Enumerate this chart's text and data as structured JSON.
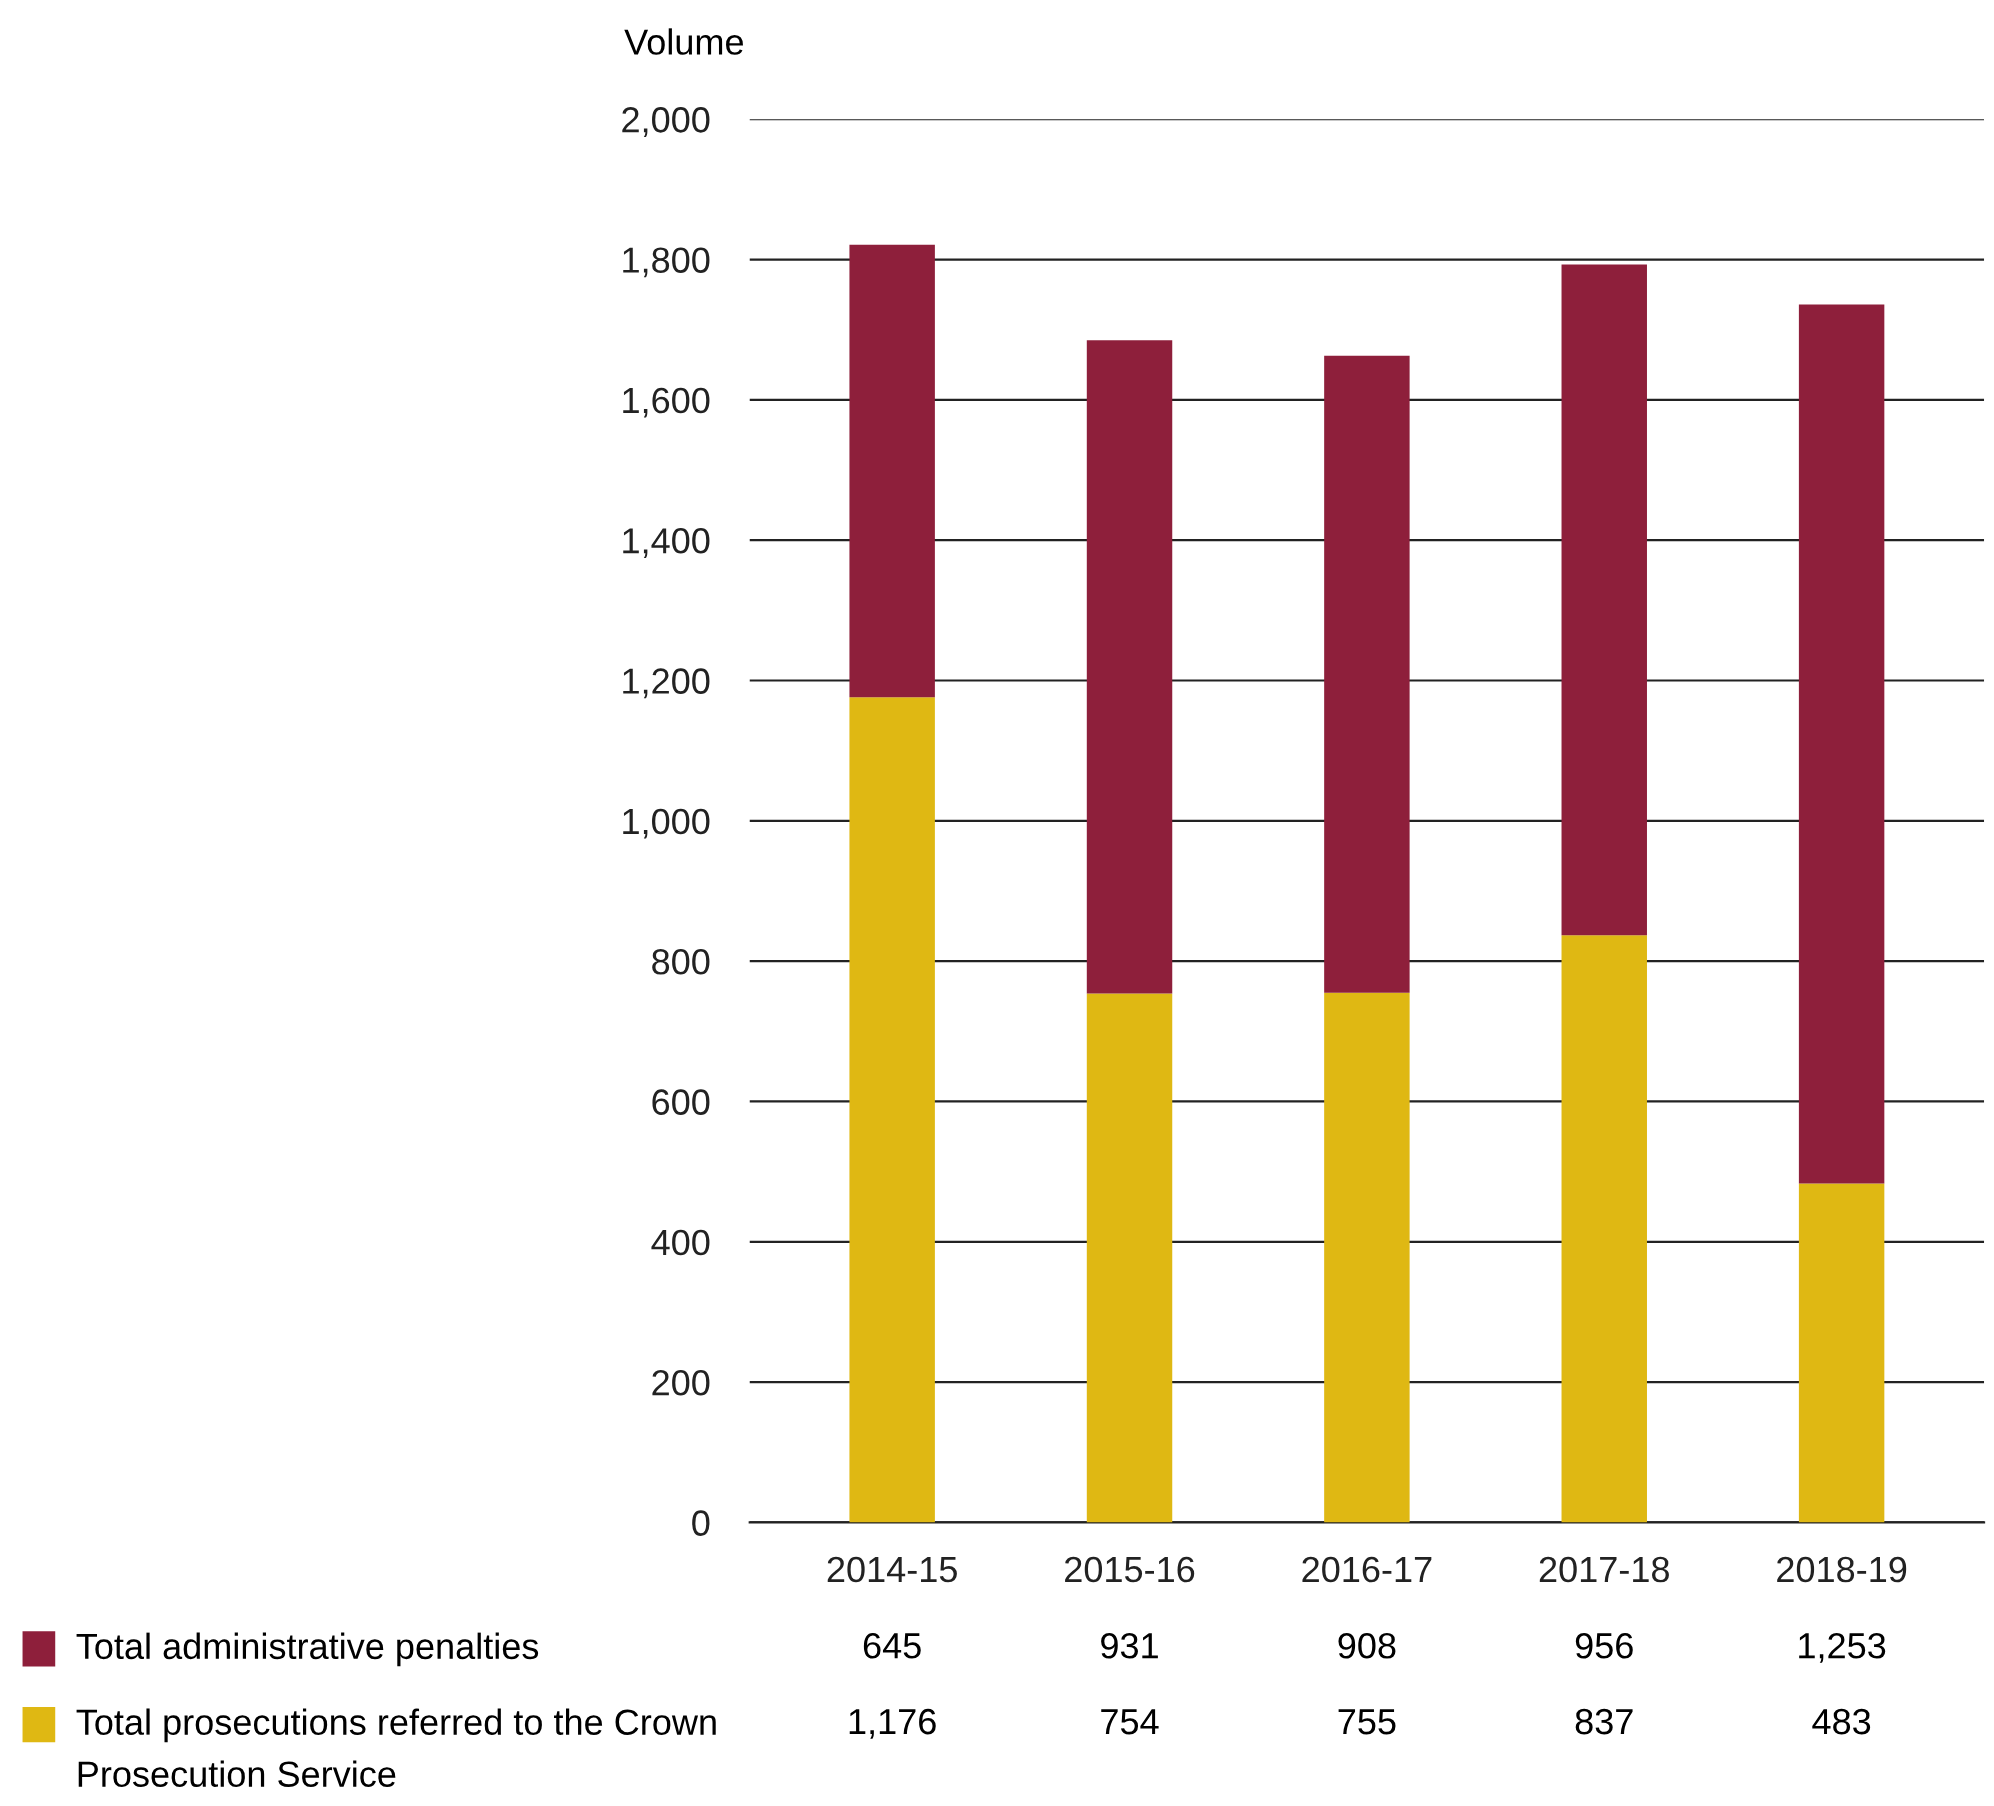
{
  "chart_data": {
    "type": "bar",
    "stacked": true,
    "ylabel": "Volume",
    "categories": [
      "2014-15",
      "2015-16",
      "2016-17",
      "2017-18",
      "2018-19"
    ],
    "series": [
      {
        "name": "Total prosecutions referred to the Crown Prosecution Service",
        "color": "#dfb813",
        "values": [
          1176,
          754,
          755,
          837,
          483
        ],
        "value_labels": [
          "1,176",
          "754",
          "755",
          "837",
          "483"
        ]
      },
      {
        "name": "Total administrative penalties",
        "color": "#8e1f3b",
        "values": [
          645,
          931,
          908,
          956,
          1253
        ],
        "value_labels": [
          "645",
          "931",
          "908",
          "956",
          "1,253"
        ]
      }
    ],
    "ylim": [
      0,
      2000
    ],
    "yticks": [
      0,
      200,
      400,
      600,
      800,
      {
        "value": 1000,
        "label": "1,000"
      },
      {
        "value": 1200,
        "label": "1,200"
      },
      {
        "value": 1400,
        "label": "1,400"
      },
      {
        "value": 1600,
        "label": "1,600"
      },
      {
        "value": 1800,
        "label": "1,800"
      },
      {
        "value": 2000,
        "label": "2,000"
      }
    ],
    "grid": "y",
    "legend": "bottom"
  }
}
